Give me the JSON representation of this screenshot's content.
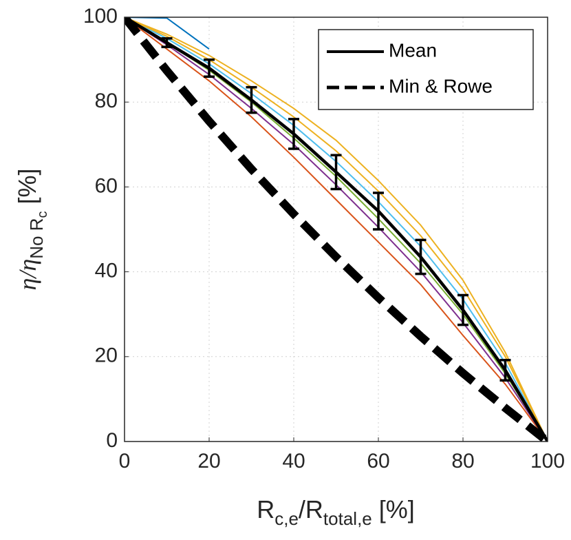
{
  "chart_data": {
    "type": "line",
    "xlabel": [
      "R",
      "c,e",
      "/R",
      "total,e",
      " [%]"
    ],
    "ylabel": [
      "η/η",
      "No R",
      "c",
      " [%]"
    ],
    "x": [
      0,
      10,
      20,
      30,
      40,
      50,
      60,
      70,
      80,
      90,
      100
    ],
    "xlim": [
      0,
      100
    ],
    "ylim": [
      0,
      100
    ],
    "xticks": [
      0,
      20,
      40,
      60,
      80,
      100
    ],
    "yticks": [
      0,
      20,
      40,
      60,
      80,
      100
    ],
    "grid": true,
    "legend": "top-right",
    "series": [
      {
        "color": "#edb120",
        "values": [
          100,
          96,
          91,
          85,
          78.5,
          71,
          61.5,
          51,
          38,
          21,
          0
        ]
      },
      {
        "color": "#d95319",
        "values": [
          100,
          92.5,
          85,
          76.5,
          67,
          57,
          47,
          37,
          25,
          13.5,
          0
        ]
      },
      {
        "color": "#7e2f8e",
        "values": [
          100,
          93.5,
          86.5,
          78.5,
          70,
          60.5,
          50.5,
          40,
          28,
          15,
          0
        ]
      },
      {
        "color": "#4dbeee",
        "values": [
          100,
          95,
          89,
          82,
          74.5,
          66,
          56.5,
          46,
          33.5,
          18.5,
          0
        ]
      },
      {
        "color": "#77ac30",
        "values": [
          100,
          94,
          87.5,
          80,
          71.5,
          62.5,
          52.5,
          42,
          30,
          16,
          0
        ]
      },
      {
        "color": "#edb120",
        "values": [
          100,
          95.5,
          90,
          83.5,
          76.5,
          68.5,
          59,
          48.5,
          36,
          20,
          0
        ]
      },
      {
        "color": "#0072bd",
        "values": [
          100,
          99.8,
          92.5,
          null,
          null,
          null,
          null,
          null,
          null,
          null,
          null
        ]
      },
      {
        "name": "Mean",
        "color": "#000000",
        "style": "solid",
        "values": [
          100,
          94,
          88,
          80.5,
          72.5,
          63.5,
          54.3,
          43.5,
          31,
          16.8,
          0
        ],
        "errors": [
          null,
          1,
          2,
          3,
          3.5,
          4,
          4.3,
          4,
          3.5,
          2.4,
          null
        ]
      },
      {
        "name": "Min & Rowe",
        "color": "#000000",
        "style": "dashed",
        "values": [
          100,
          87.4,
          75.5,
          64.2,
          53.6,
          43.5,
          33.9,
          24.8,
          16.1,
          7.9,
          0
        ]
      }
    ]
  }
}
